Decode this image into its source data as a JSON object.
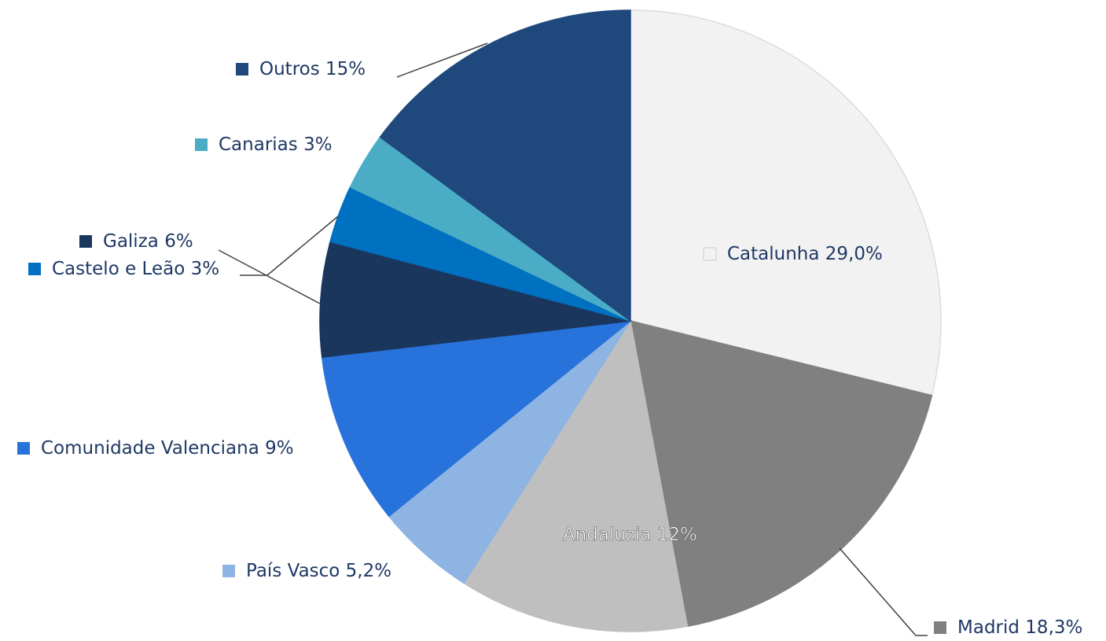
{
  "chart_data": {
    "type": "pie",
    "categories": [
      "Catalunha",
      "Madrid",
      "Andaluzia",
      "País Vasco",
      "Comunidade Valenciana",
      "Galiza",
      "Castelo e Leão",
      "Canarias",
      "Outros"
    ],
    "values": [
      29.0,
      18.3,
      12,
      5.2,
      9,
      6,
      3,
      3,
      15
    ],
    "value_labels": [
      "29,0%",
      "18,3%",
      "12%",
      "5,2%",
      "9%",
      "6%",
      "3%",
      "3%",
      "15%"
    ],
    "colors": [
      "#f2f2f2",
      "#808080",
      "#bfbfbf",
      "#8eb4e3",
      "#2872dc",
      "#1b365d",
      "#0070c0",
      "#4bacc6",
      "#1f497d"
    ]
  }
}
